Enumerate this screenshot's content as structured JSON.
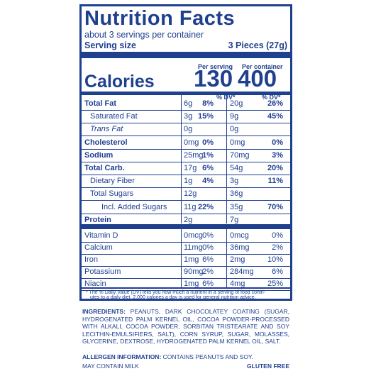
{
  "label": {
    "title": "Nutrition Facts",
    "servings": "about 3 servings per container",
    "serving_size_label": "Serving size",
    "serving_size_value": "3 Pieces (27g)",
    "per_serving_label": "Per serving",
    "per_container_label": "Per container",
    "calories_label": "Calories",
    "calories_per_serving": "130",
    "calories_per_container": "400",
    "dv_header_serving": "% DV*",
    "dv_header_container": "% DV*"
  },
  "nutrients": [
    {
      "name": "Total Fat",
      "style": "bold",
      "s_amt": "6g",
      "s_dv": "8%",
      "c_amt": "20g",
      "c_dv": "26%"
    },
    {
      "name": "Saturated Fat",
      "style": "indent",
      "s_amt": "3g",
      "s_dv": "15%",
      "c_amt": "9g",
      "c_dv": "45%"
    },
    {
      "name": "Trans Fat",
      "style": "indent-italic",
      "s_amt": "0g",
      "s_dv": "",
      "c_amt": "0g",
      "c_dv": ""
    },
    {
      "name": "Cholesterol",
      "style": "bold",
      "s_amt": "0mg",
      "s_dv": "0%",
      "c_amt": "0mg",
      "c_dv": "0%"
    },
    {
      "name": "Sodium",
      "style": "bold",
      "s_amt": "25mg",
      "s_dv": "1%",
      "c_amt": "70mg",
      "c_dv": "3%"
    },
    {
      "name": "Total Carb.",
      "style": "bold",
      "s_amt": "17g",
      "s_dv": "6%",
      "c_amt": "54g",
      "c_dv": "20%"
    },
    {
      "name": "Dietary Fiber",
      "style": "indent",
      "s_amt": "1g",
      "s_dv": "4%",
      "c_amt": "3g",
      "c_dv": "11%"
    },
    {
      "name": "Total Sugars",
      "style": "indent",
      "s_amt": "12g",
      "s_dv": "",
      "c_amt": "36g",
      "c_dv": ""
    },
    {
      "name": "Incl. Added Sugars",
      "style": "indent2",
      "s_amt": "11g",
      "s_dv": "22%",
      "c_amt": "35g",
      "c_dv": "70%"
    },
    {
      "name": "Protein",
      "style": "bold",
      "s_amt": "2g",
      "s_dv": "",
      "c_amt": "7g",
      "c_dv": ""
    }
  ],
  "vitamins": [
    {
      "name": "Vitamin D",
      "s_amt": "0mcg",
      "s_dv": "0%",
      "c_amt": "0mcg",
      "c_dv": "0%"
    },
    {
      "name": "Calcium",
      "s_amt": "11mg",
      "s_dv": "0%",
      "c_amt": "36mg",
      "c_dv": "2%"
    },
    {
      "name": "Iron",
      "s_amt": "1mg",
      "s_dv": "6%",
      "c_amt": "2mg",
      "c_dv": "10%"
    },
    {
      "name": "Potassium",
      "s_amt": "90mg",
      "s_dv": "2%",
      "c_amt": "284mg",
      "c_dv": "6%"
    },
    {
      "name": "Niacin",
      "s_amt": "1mg",
      "s_dv": "6%",
      "c_amt": "4mg",
      "c_dv": "25%"
    }
  ],
  "footnote_line1": "* The % Daily Value (DV) tells you how much a nutrient in a serving of food contri-",
  "footnote_line2": "utes to a daily diet. 2,000 calories a day is used for general nutrition advice.",
  "ingredients_label": "INGREDIENTS:",
  "ingredients_text": "PEANUTS, DARK CHOCOLATEY COATING (SUGAR, HYDROGENATED PALM KERNEL OIL, COCOA POWDER-PROCESSED WITH ALKALI, COCOA POWDER, SORBITAN TRISTEARATE AND SOY LECITHIN-EMULSIFIERS, SALT), CORN SYRUP, SUGAR, MOLASSES, GLYCERINE, DEXTROSE, HYDROGENATED PALM KERNEL OIL, SALT.",
  "allergen_label": "ALLERGEN INFORMATION:",
  "allergen_text": "CONTAINS PEANUTS AND SOY.",
  "may_contain": "MAY CONTAIN MILK",
  "gluten_free": "GLUTEN FREE",
  "colors": {
    "ink": "#1f3f8f",
    "background": "#ffffff"
  }
}
